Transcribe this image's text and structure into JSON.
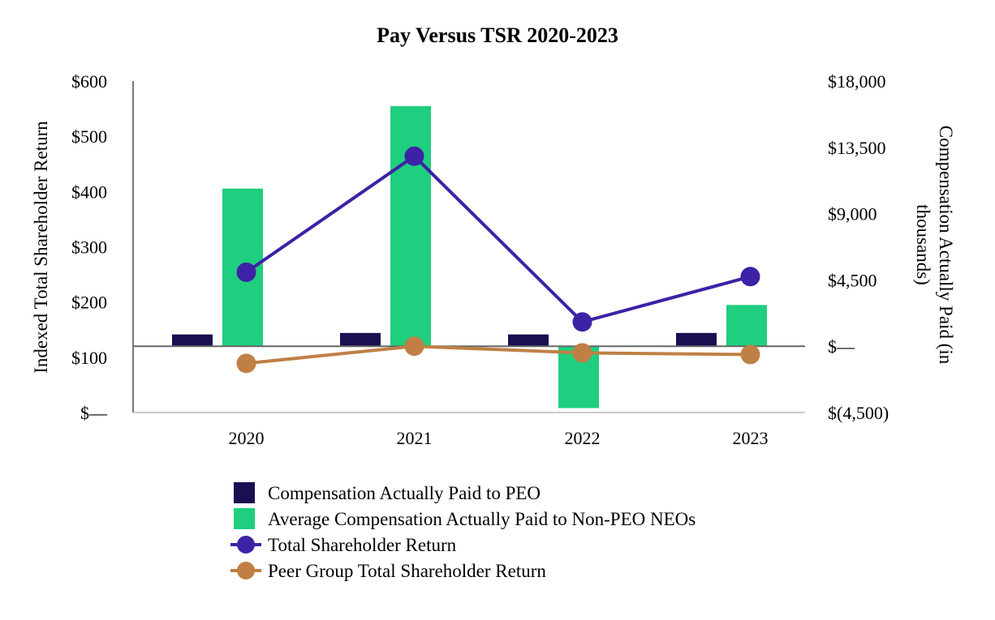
{
  "chart_data": {
    "type": "bar",
    "title": "Pay Versus TSR 2020-2023",
    "categories": [
      "2020",
      "2021",
      "2022",
      "2023"
    ],
    "y_left": {
      "label": "Indexed Total Shareholder Return",
      "range": [
        0,
        600
      ],
      "ticks": [
        0,
        100,
        200,
        300,
        400,
        500,
        600
      ],
      "tick_labels": [
        "$—",
        "$100",
        "$200",
        "$300",
        "$400",
        "$500",
        "$600"
      ]
    },
    "y_right": {
      "label_line1": "Compensation Actually Paid (in",
      "label_line2": "thousands)",
      "range": [
        -4500,
        18000
      ],
      "ticks": [
        -4500,
        0,
        4500,
        9000,
        13500,
        18000
      ],
      "tick_labels": [
        "$(4,500)",
        "$—",
        "$4,500",
        "$9,000",
        "$13,500",
        "$18,000"
      ]
    },
    "bar_series": [
      {
        "name": "Compensation Actually Paid to PEO",
        "color": "#1b0f52",
        "axis": "right",
        "values": [
          800,
          900,
          800,
          900
        ]
      },
      {
        "name": "Average Compensation Actually Paid to Non-PEO NEOs",
        "color": "#1fcf7f",
        "axis": "right",
        "values": [
          10700,
          16300,
          -4200,
          2800
        ]
      }
    ],
    "line_series": [
      {
        "name": "Total Shareholder Return",
        "color": "#3d22a6",
        "axis": "left",
        "values": [
          254,
          464,
          164,
          246
        ]
      },
      {
        "name": "Peer Group Total Shareholder Return",
        "color": "#c07f45",
        "axis": "left",
        "values": [
          89,
          120,
          108,
          105
        ]
      }
    ],
    "legend_position": "bottom",
    "grid": false
  }
}
